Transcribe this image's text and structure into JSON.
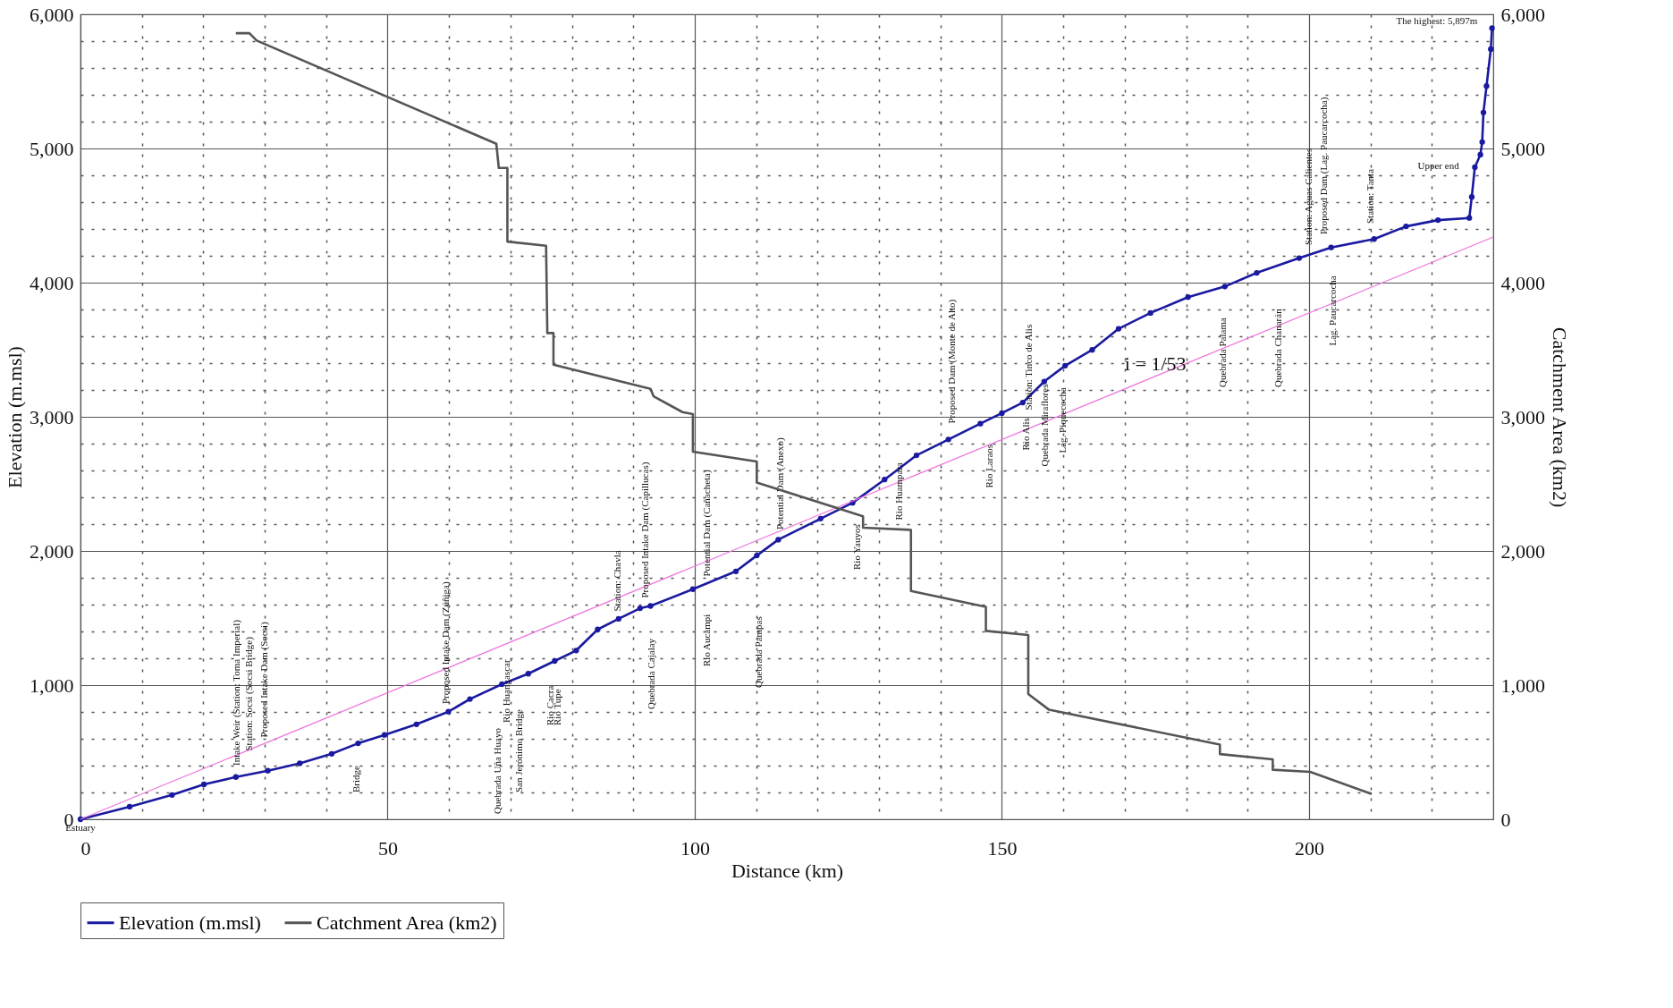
{
  "chart_data": {
    "type": "line",
    "xlabel": "Distance (km)",
    "ylabel": "Elevation (m.msl)",
    "y2label": "Catchment Area (km2)",
    "xlim": [
      0,
      230
    ],
    "ylim": [
      0,
      6000
    ],
    "y2lim": [
      0,
      6000
    ],
    "xticks": [
      0,
      {
        "value": 10,
        "label": null
      },
      {
        "value": 20,
        "label": null
      },
      {
        "value": 30,
        "label": null
      },
      {
        "value": 40,
        "label": null
      },
      50,
      {
        "value": 60,
        "label": null
      },
      {
        "value": 70,
        "label": null
      },
      {
        "value": 80,
        "label": null
      },
      {
        "value": 90,
        "label": null
      },
      100,
      {
        "value": 110,
        "label": null
      },
      {
        "value": 120,
        "label": null
      },
      {
        "value": 130,
        "label": null
      },
      {
        "value": 140,
        "label": null
      },
      150,
      {
        "value": 160,
        "label": null
      },
      {
        "value": 170,
        "label": null
      },
      {
        "value": 180,
        "label": null
      },
      {
        "value": 190,
        "label": null
      },
      200,
      {
        "value": 210,
        "label": null
      },
      {
        "value": 220,
        "label": null
      }
    ],
    "yticks": [
      0,
      {
        "value": 200,
        "label": null
      },
      {
        "value": 400,
        "label": null
      },
      {
        "value": 600,
        "label": null
      },
      {
        "value": 800,
        "label": null
      },
      {
        "value": 1000,
        "label": "1,000"
      },
      {
        "value": 1200,
        "label": null
      },
      {
        "value": 1400,
        "label": null
      },
      {
        "value": 1600,
        "label": null
      },
      {
        "value": 1800,
        "label": null
      },
      {
        "value": 2000,
        "label": "2,000"
      },
      {
        "value": 2200,
        "label": null
      },
      {
        "value": 2400,
        "label": null
      },
      {
        "value": 2600,
        "label": null
      },
      {
        "value": 2800,
        "label": null
      },
      {
        "value": 3000,
        "label": "3,000"
      },
      {
        "value": 3200,
        "label": null
      },
      {
        "value": 3400,
        "label": null
      },
      {
        "value": 3600,
        "label": null
      },
      {
        "value": 3800,
        "label": null
      },
      {
        "value": 4000,
        "label": "4,000"
      },
      {
        "value": 4200,
        "label": null
      },
      {
        "value": 4400,
        "label": null
      },
      {
        "value": 4600,
        "label": null
      },
      {
        "value": 4800,
        "label": null
      },
      {
        "value": 5000,
        "label": "5,000"
      },
      {
        "value": 5200,
        "label": null
      },
      {
        "value": 5400,
        "label": null
      },
      {
        "value": 5600,
        "label": null
      },
      {
        "value": 5800,
        "label": null
      },
      {
        "value": 6000,
        "label": "6,000"
      }
    ],
    "y2ticks": [
      0,
      {
        "value": 1000,
        "label": "1,000"
      },
      {
        "value": 2000,
        "label": "2,000"
      },
      {
        "value": 3000,
        "label": "3,000"
      },
      {
        "value": 4000,
        "label": "4,000"
      },
      {
        "value": 5000,
        "label": "5,000"
      },
      {
        "value": 6000,
        "label": "6,000"
      }
    ],
    "grid": true,
    "legend": "bottom",
    "series": [
      {
        "name": "Elevation (m.msl)",
        "color": "#1a1aa0",
        "marker": "circle",
        "line_style": "solid",
        "x": [
          0,
          8.0,
          14.9,
          20.1,
          25.3,
          30.5,
          35.7,
          40.9,
          45.2,
          49.5,
          54.7,
          59.9,
          63.4,
          68.6,
          72.9,
          77.2,
          80.7,
          84.2,
          87.6,
          91.1,
          92.8,
          99.7,
          106.7,
          110.1,
          113.6,
          120.5,
          125.7,
          130.9,
          136.1,
          141.3,
          146.5,
          150.0,
          153.4,
          156.9,
          160.3,
          164.7,
          169.0,
          174.2,
          180.3,
          186.3,
          191.5,
          198.4,
          203.6,
          210.6,
          215.8,
          221.0,
          226.1,
          226.5,
          227.0,
          227.9,
          228.2,
          228.4,
          228.9,
          229.6,
          229.8
        ],
        "values": [
          0,
          94,
          181,
          260,
          315,
          362,
          417,
          488,
          566,
          629,
          708,
          802,
          896,
          1007,
          1085,
          1180,
          1258,
          1415,
          1494,
          1573,
          1590,
          1715,
          1848,
          1966,
          2084,
          2241,
          2359,
          2532,
          2713,
          2831,
          2949,
          3027,
          3106,
          3263,
          3381,
          3499,
          3656,
          3774,
          3892,
          3971,
          4073,
          4183,
          4262,
          4325,
          4419,
          4466,
          4482,
          4639,
          4860,
          4954,
          5048,
          5268,
          5465,
          5740,
          5897
        ]
      },
      {
        "name": "Catchment Area (km2)",
        "color": "#555555",
        "marker": "none",
        "line_style": "solid",
        "axis": "y2",
        "x": [
          25.3,
          27.5,
          28.7,
          67.7,
          68.1,
          69.5,
          69.5,
          75.8,
          76.0,
          77.0,
          77.0,
          92.8,
          93.3,
          98.0,
          99.7,
          99.7,
          110.1,
          110.1,
          127.4,
          127.4,
          135.2,
          135.2,
          147.4,
          147.4,
          154.3,
          154.3,
          157.7,
          185.5,
          185.5,
          194.1,
          194.1,
          200.2,
          210.2
        ],
        "values": [
          5859,
          5859,
          5804,
          5035,
          4855,
          4855,
          4306,
          4275,
          3624,
          3624,
          3388,
          3208,
          3153,
          3035,
          3020,
          2740,
          2667,
          2510,
          2259,
          2173,
          2157,
          1702,
          1584,
          1404,
          1373,
          933,
          816,
          557,
          486,
          447,
          369,
          353,
          188
        ]
      },
      {
        "color": "#ee77dd",
        "marker": "none",
        "line_style": "solid",
        "x": [
          0,
          230
        ],
        "values": [
          0,
          4340
        ]
      }
    ],
    "annotations": [
      "Intake Weir (Station: Toma Imperial)",
      "Station: Socsi (Socsi Bridge)",
      "Proposed Intake Dam (Socsi)",
      "Bridge",
      "Proposed Intake Dam (Zúñiga)",
      "Quebrada Uña Huayo",
      "Rio Huangascar",
      "San Jerónimo Bridge",
      "Rio Cacra",
      "Rio Tupe",
      "Quebrada Cajalay",
      "Station: Chavla",
      "Proposed Intake Dam (Capillucas)",
      "Rio Aucampi",
      "Potential Dam (Cañacheta)",
      "Quebrada Pampas",
      "Potential Dam (Anexo)",
      "Rio Yauyos",
      "Rio Huampara",
      "Proposed Dam (Monte de Alto)",
      "Rio Laraos",
      "Rio Alis",
      "Station: Tinco de Alis",
      "Quebrada Miraflores",
      "Lag. Piquecocha",
      "Quebrada Palama",
      "Quebrada Chanarán",
      "Station: Aguas Calientes",
      "Proposed Dam (Lag. Paucarcocha)",
      "Lag. Paucarcocha",
      "Station: Tanta",
      "Estuary",
      {
        "text": "i = 1/53",
        "x": 170,
        "y": 3208
      },
      "Upper end",
      "The highest: 5,897m"
    ]
  }
}
